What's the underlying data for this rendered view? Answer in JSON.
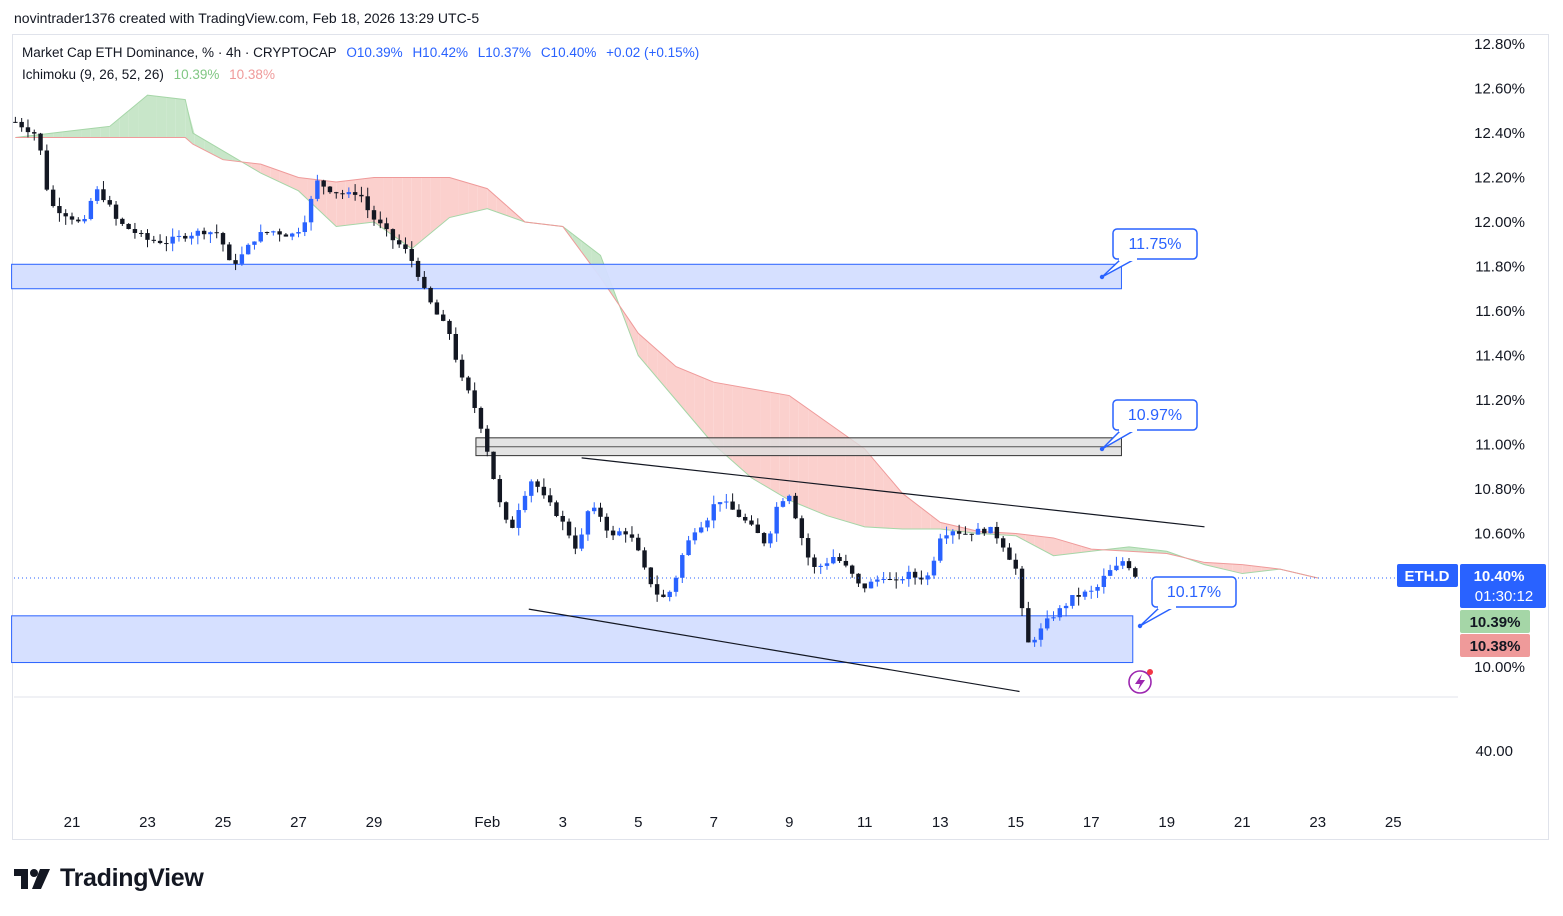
{
  "header": {
    "attribution": "novintrader1376 created with TradingView.com, Feb 18, 2026 13:29 UTC-5"
  },
  "legend": {
    "symbol": "Market Cap ETH Dominance, % · 4h · CRYPTOCAP",
    "open": "O10.39%",
    "high": "H10.42%",
    "low": "L10.37%",
    "close": "C10.40%",
    "change": "+0.02 (+0.15%)",
    "indicator": "Ichimoku (9, 26, 52, 26)",
    "ind_value1": "10.39%",
    "ind_value2": "10.38%"
  },
  "colors": {
    "up": "#2962ff",
    "down": "#131722",
    "cloud_bull": "#c8e6c9",
    "cloud_bear": "#fbd0cd",
    "zone_fill": "#d4deff",
    "zone_stroke": "#2962ff",
    "gray_zone": "#dddddd",
    "accent": "#2962ff"
  },
  "chart_data": {
    "type": "candlestick",
    "symbol": "ETH.D",
    "title": "Market Cap ETH Dominance, % · 4h · CRYPTOCAP",
    "y_axis": {
      "ticks": [
        "12.80%",
        "12.60%",
        "12.40%",
        "12.20%",
        "12.00%",
        "11.80%",
        "11.60%",
        "11.40%",
        "11.20%",
        "11.00%",
        "10.80%",
        "10.60%",
        "10.00%"
      ],
      "tick_values": [
        12.8,
        12.6,
        12.4,
        12.2,
        12.0,
        11.8,
        11.6,
        11.4,
        11.2,
        11.0,
        10.8,
        10.6,
        10.0
      ],
      "range": [
        9.85,
        12.85
      ]
    },
    "x_axis": {
      "labels": [
        "21",
        "23",
        "25",
        "27",
        "29",
        "Feb",
        "3",
        "5",
        "7",
        "9",
        "11",
        "13",
        "15",
        "17",
        "19",
        "21",
        "23",
        "25"
      ],
      "day_index": [
        0,
        2,
        4,
        6,
        8,
        11,
        13,
        15,
        17,
        19,
        21,
        23,
        25,
        27,
        29,
        31,
        33,
        35
      ],
      "start_date": "Jan 21"
    },
    "price_series": {
      "desc": "approximate 4h closing path, day index from Jan 21",
      "points": [
        [
          -1.5,
          12.45
        ],
        [
          -1.0,
          12.4
        ],
        [
          -0.8,
          12.3
        ],
        [
          -0.6,
          12.08
        ],
        [
          -0.3,
          12.05
        ],
        [
          0.0,
          12.02
        ],
        [
          0.3,
          11.98
        ],
        [
          0.6,
          12.15
        ],
        [
          0.9,
          12.1
        ],
        [
          1.2,
          12.0
        ],
        [
          1.5,
          11.97
        ],
        [
          2.0,
          11.92
        ],
        [
          2.5,
          11.91
        ],
        [
          3.0,
          11.94
        ],
        [
          3.5,
          11.96
        ],
        [
          3.9,
          11.95
        ],
        [
          4.2,
          11.8
        ],
        [
          4.5,
          11.85
        ],
        [
          4.9,
          11.94
        ],
        [
          5.3,
          11.96
        ],
        [
          5.8,
          11.94
        ],
        [
          6.1,
          11.98
        ],
        [
          6.5,
          12.18
        ],
        [
          6.9,
          12.14
        ],
        [
          7.3,
          12.12
        ],
        [
          7.6,
          12.14
        ],
        [
          7.9,
          12.03
        ],
        [
          8.2,
          11.98
        ],
        [
          8.5,
          11.92
        ],
        [
          8.8,
          11.88
        ],
        [
          9.1,
          11.8
        ],
        [
          9.3,
          11.7
        ],
        [
          9.6,
          11.6
        ],
        [
          10.0,
          11.5
        ],
        [
          10.3,
          11.3
        ],
        [
          10.6,
          11.2
        ],
        [
          10.9,
          11.05
        ],
        [
          11.1,
          10.9
        ],
        [
          11.3,
          10.75
        ],
        [
          11.6,
          10.6
        ],
        [
          11.9,
          10.75
        ],
        [
          12.2,
          10.85
        ],
        [
          12.5,
          10.76
        ],
        [
          12.8,
          10.7
        ],
        [
          13.1,
          10.62
        ],
        [
          13.4,
          10.52
        ],
        [
          13.7,
          10.72
        ],
        [
          14.0,
          10.68
        ],
        [
          14.3,
          10.58
        ],
        [
          14.6,
          10.62
        ],
        [
          14.9,
          10.56
        ],
        [
          15.2,
          10.42
        ],
        [
          15.6,
          10.3
        ],
        [
          15.9,
          10.35
        ],
        [
          16.2,
          10.52
        ],
        [
          16.5,
          10.62
        ],
        [
          16.8,
          10.66
        ],
        [
          17.1,
          10.76
        ],
        [
          17.4,
          10.72
        ],
        [
          17.8,
          10.66
        ],
        [
          18.1,
          10.61
        ],
        [
          18.4,
          10.55
        ],
        [
          18.7,
          10.74
        ],
        [
          19.0,
          10.78
        ],
        [
          19.3,
          10.6
        ],
        [
          19.6,
          10.44
        ],
        [
          19.9,
          10.46
        ],
        [
          20.2,
          10.5
        ],
        [
          20.6,
          10.43
        ],
        [
          20.9,
          10.35
        ],
        [
          21.2,
          10.38
        ],
        [
          21.5,
          10.41
        ],
        [
          21.8,
          10.37
        ],
        [
          22.1,
          10.42
        ],
        [
          22.4,
          10.4
        ],
        [
          22.7,
          10.41
        ],
        [
          23.0,
          10.59
        ],
        [
          23.3,
          10.62
        ],
        [
          23.6,
          10.6
        ],
        [
          24.0,
          10.61
        ],
        [
          24.3,
          10.62
        ],
        [
          24.6,
          10.57
        ],
        [
          25.0,
          10.44
        ],
        [
          25.3,
          10.1
        ],
        [
          25.6,
          10.15
        ],
        [
          25.9,
          10.22
        ],
        [
          26.2,
          10.26
        ],
        [
          26.5,
          10.31
        ],
        [
          26.8,
          10.33
        ],
        [
          27.1,
          10.34
        ],
        [
          27.4,
          10.42
        ],
        [
          27.7,
          10.45
        ],
        [
          27.9,
          10.49
        ],
        [
          28.1,
          10.42
        ],
        [
          28.3,
          10.4
        ]
      ]
    },
    "ichimoku_cloud_edge": {
      "span_a": [
        [
          -1.5,
          12.38
        ],
        [
          0.0,
          12.41
        ],
        [
          1.0,
          12.43
        ],
        [
          2.0,
          12.57
        ],
        [
          3.0,
          12.55
        ],
        [
          3.2,
          12.4
        ],
        [
          4.0,
          12.32
        ],
        [
          5.0,
          12.22
        ],
        [
          6.0,
          12.14
        ],
        [
          7.0,
          11.98
        ],
        [
          8.0,
          12.0
        ],
        [
          9.0,
          11.88
        ],
        [
          10.0,
          12.02
        ],
        [
          11.0,
          12.06
        ],
        [
          12.0,
          12.0
        ],
        [
          13.0,
          11.98
        ],
        [
          14.0,
          11.85
        ],
        [
          15.0,
          11.4
        ],
        [
          16.0,
          11.2
        ],
        [
          17.0,
          11.0
        ],
        [
          18.0,
          10.85
        ],
        [
          19.0,
          10.75
        ],
        [
          20.0,
          10.68
        ],
        [
          21.0,
          10.63
        ],
        [
          22.0,
          10.62
        ],
        [
          23.0,
          10.62
        ],
        [
          24.0,
          10.6
        ],
        [
          25.0,
          10.59
        ],
        [
          26.0,
          10.5
        ],
        [
          27.0,
          10.52
        ],
        [
          28.0,
          10.54
        ],
        [
          29.0,
          10.52
        ],
        [
          30.0,
          10.46
        ],
        [
          31.0,
          10.42
        ],
        [
          32.0,
          10.44
        ],
        [
          33.0,
          10.4
        ]
      ],
      "span_b": [
        [
          -1.5,
          12.38
        ],
        [
          0.0,
          12.38
        ],
        [
          1.0,
          12.38
        ],
        [
          2.0,
          12.38
        ],
        [
          3.0,
          12.38
        ],
        [
          3.2,
          12.35
        ],
        [
          4.0,
          12.28
        ],
        [
          5.0,
          12.26
        ],
        [
          6.0,
          12.2
        ],
        [
          7.0,
          12.18
        ],
        [
          8.0,
          12.2
        ],
        [
          9.0,
          12.2
        ],
        [
          10.0,
          12.2
        ],
        [
          11.0,
          12.15
        ],
        [
          12.0,
          12.0
        ],
        [
          13.0,
          11.98
        ],
        [
          14.0,
          11.75
        ],
        [
          15.0,
          11.5
        ],
        [
          16.0,
          11.35
        ],
        [
          17.0,
          11.28
        ],
        [
          18.0,
          11.25
        ],
        [
          19.0,
          11.22
        ],
        [
          20.0,
          11.1
        ],
        [
          21.0,
          10.98
        ],
        [
          22.0,
          10.78
        ],
        [
          23.0,
          10.65
        ],
        [
          24.0,
          10.61
        ],
        [
          25.0,
          10.6
        ],
        [
          26.0,
          10.58
        ],
        [
          27.0,
          10.53
        ],
        [
          28.0,
          10.52
        ],
        [
          29.0,
          10.51
        ],
        [
          30.0,
          10.47
        ],
        [
          31.0,
          10.46
        ],
        [
          32.0,
          10.44
        ],
        [
          33.0,
          10.4
        ]
      ]
    },
    "zones": [
      {
        "name": "upper-support-zone",
        "from_day": -1.6,
        "to_day": 27.8,
        "low": 11.7,
        "high": 11.81
      },
      {
        "name": "gray-zone",
        "from_day": 10.7,
        "to_day": 27.8,
        "low": 10.95,
        "high": 11.03
      },
      {
        "name": "lower-demand-zone",
        "from_day": -1.6,
        "to_day": 28.1,
        "low": 10.02,
        "high": 10.23
      }
    ],
    "trendlines": [
      {
        "from": [
          13.5,
          10.94
        ],
        "to": [
          30.0,
          10.63
        ]
      },
      {
        "from": [
          12.1,
          10.26
        ],
        "to": [
          25.1,
          9.89
        ]
      }
    ],
    "callouts": [
      {
        "label": "11.75%",
        "value": 11.75
      },
      {
        "label": "10.97%",
        "value": 10.97
      },
      {
        "label": "10.17%",
        "value": 10.17
      }
    ],
    "price_tags": {
      "symbol": "ETH.D",
      "last": "10.40%",
      "countdown": "01:30:12",
      "span_a": "10.39%",
      "span_b": "10.38%"
    },
    "lower_pane": {
      "tick": "40.00"
    }
  }
}
